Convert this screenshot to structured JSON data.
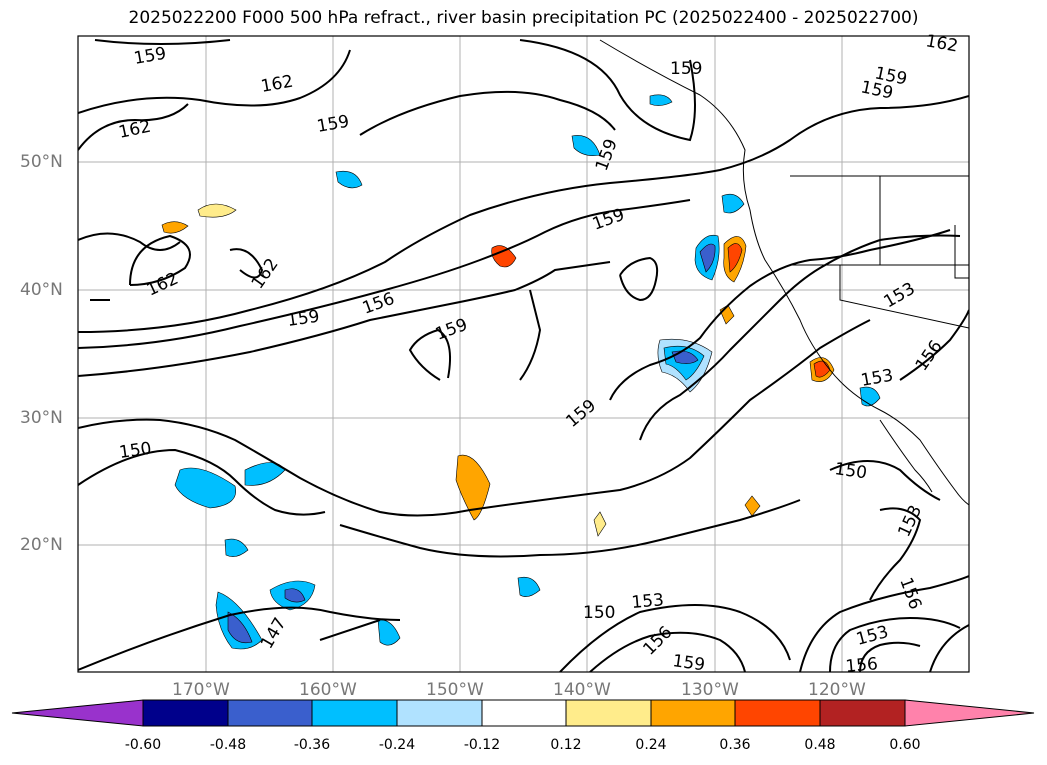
{
  "title": "2025022200 F000 500 hPa refract., river basin precipitation PC (2025022400 - 2025022700)",
  "map": {
    "lat_ticks": [
      "50°N",
      "40°N",
      "30°N",
      "20°N"
    ],
    "lon_ticks": [
      "170°W",
      "160°W",
      "150°W",
      "140°W",
      "130°W",
      "120°W"
    ],
    "contour_labels": [
      "159",
      "162",
      "159",
      "162",
      "159",
      "159",
      "159",
      "162",
      "159",
      "162",
      "162",
      "159",
      "156",
      "159",
      "159",
      "159",
      "153",
      "156",
      "153",
      "150",
      "150",
      "153",
      "147",
      "150",
      "153",
      "156",
      "156",
      "153",
      "156",
      "159"
    ]
  },
  "colorbar": {
    "labels": [
      "-0.60",
      "-0.48",
      "-0.36",
      "-0.24",
      "-0.12",
      "0.12",
      "0.24",
      "0.36",
      "0.48",
      "0.60"
    ],
    "colors": [
      "#9932CC",
      "#00008B",
      "#3A5FCD",
      "#00BFFF",
      "#B0E2FF",
      "#FFFFFF",
      "#FFEC8B",
      "#FFA500",
      "#FF4500",
      "#B22222",
      "#FF82AB"
    ]
  }
}
